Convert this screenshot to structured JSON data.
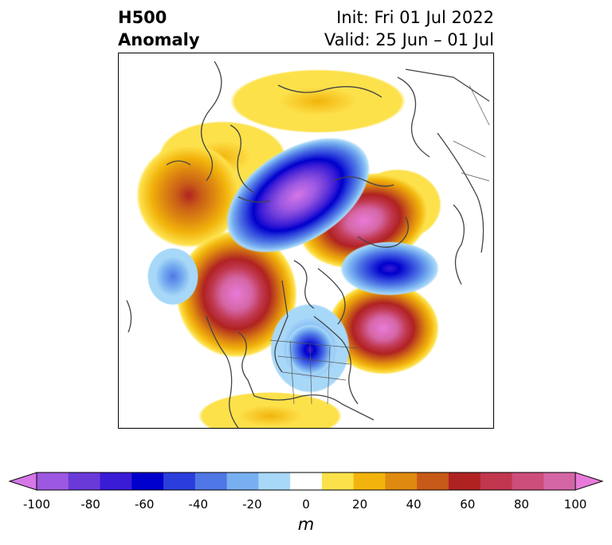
{
  "title": {
    "line1": "H500",
    "line2": "Anomaly",
    "init": "Init: Fri 01 Jul 2022",
    "valid": "Valid: 25 Jun – 01 Jul"
  },
  "colorbar": {
    "unit": "m",
    "ticks": [
      "-100",
      "-80",
      "-60",
      "-40",
      "-20",
      "0",
      "20",
      "40",
      "60",
      "80",
      "100"
    ],
    "colors": [
      "#d577e7",
      "#9d58e1",
      "#6a3ad9",
      "#3a1bd6",
      "#0000cc",
      "#2b3edc",
      "#4f77e5",
      "#77aff0",
      "#a8d8f8",
      "#ffffff",
      "#fde14b",
      "#f2b40c",
      "#df8a10",
      "#c75a18",
      "#b02222",
      "#c0374e",
      "#cd4e7a",
      "#d566a6",
      "#e87bd9"
    ]
  },
  "map": {
    "anomalies": [
      {
        "name": "gulf-of-alaska-high",
        "value": 60
      },
      {
        "name": "western-canada-high",
        "value": 100
      },
      {
        "name": "arctic-low-siberia",
        "value": -100
      },
      {
        "name": "north-atlantic-high",
        "value": 100
      },
      {
        "name": "labrador-high",
        "value": 90
      },
      {
        "name": "eastern-us-low",
        "value": -50
      },
      {
        "name": "north-pacific-low",
        "value": -30
      },
      {
        "name": "europe-low",
        "value": -70
      }
    ]
  }
}
